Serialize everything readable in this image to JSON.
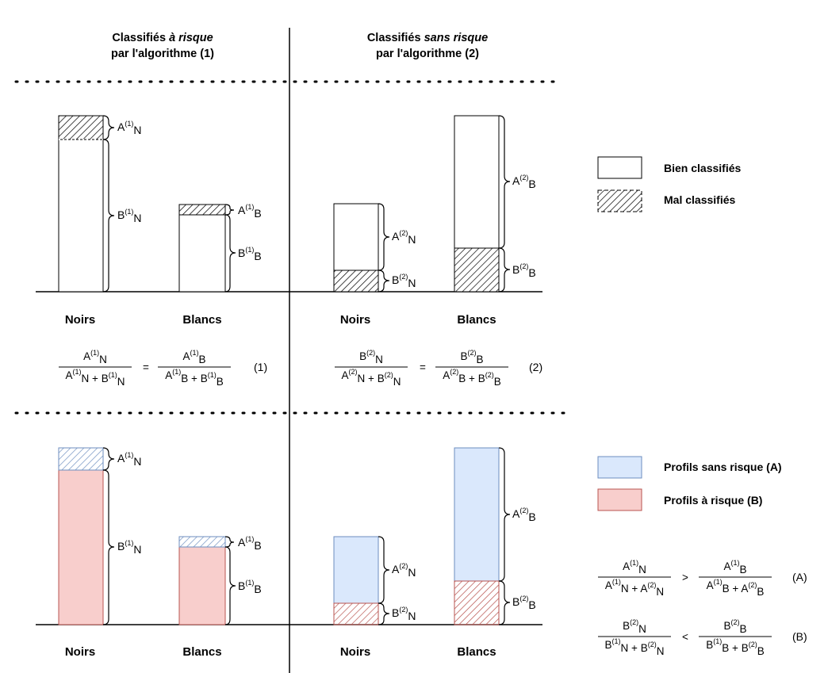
{
  "colors": {
    "line": "#000000",
    "blue_fill": "#dae8fc",
    "blue_stroke": "#6c8ebf",
    "red_fill": "#f8cecc",
    "red_stroke": "#b85450"
  },
  "icons": {
    "hatch": "hatched-pattern",
    "brace": "right-curly-brace"
  },
  "headers": {
    "col1": {
      "prefix": "Classifiés ",
      "em": "à risque",
      "line2": "par l'algorithme (1)"
    },
    "col2": {
      "prefix": "Classifiés ",
      "em": "sans risque",
      "line2": "par l'algorithme (2)"
    }
  },
  "categories": {
    "noirs": "Noirs",
    "blancs": "Blancs"
  },
  "legend_top": {
    "good": "Bien classifiés",
    "bad": "Mal classifiés"
  },
  "legend_bottom": {
    "safe": "Profils sans risque (A)",
    "risk": "Profils à risque (B)"
  },
  "sym": {
    "A": "A",
    "B": "B",
    "N": "N",
    "Bl": "B",
    "s1": "(1)",
    "s2": "(2)",
    "plus": " + ",
    "eq": "=",
    "gt": ">",
    "lt": "<"
  },
  "eq_tags": {
    "e1": "(1)",
    "e2": "(2)",
    "eA": "(A)",
    "eB": "(B)"
  }
}
